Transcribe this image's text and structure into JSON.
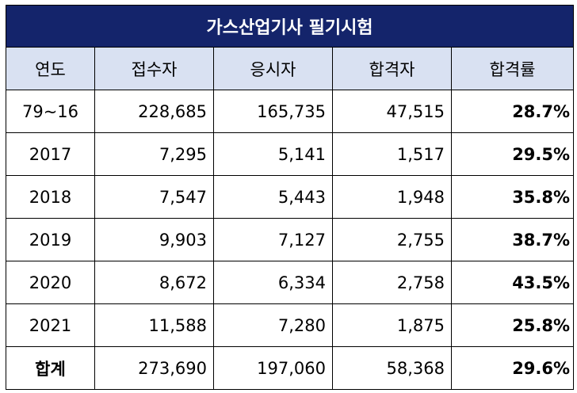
{
  "title": "가스산업기사 필기시험",
  "columns": [
    "연도",
    "접수자",
    "응시자",
    "합격자",
    "합격률"
  ],
  "rows": [
    [
      "79~16",
      "228,685",
      "165,735",
      "47,515",
      "28.7%"
    ],
    [
      "2017",
      "7,295",
      "5,141",
      "1,517",
      "29.5%"
    ],
    [
      "2018",
      "7,547",
      "5,443",
      "1,948",
      "35.8%"
    ],
    [
      "2019",
      "9,903",
      "7,127",
      "2,755",
      "38.7%"
    ],
    [
      "2020",
      "8,672",
      "6,334",
      "2,758",
      "43.5%"
    ],
    [
      "2021",
      "11,588",
      "7,280",
      "1,875",
      "25.8%"
    ]
  ],
  "total": [
    "합계",
    "273,690",
    "197,060",
    "58,368",
    "29.6%"
  ],
  "colors": {
    "title_bg": "#14246b",
    "header_bg": "#d9e1f2"
  }
}
